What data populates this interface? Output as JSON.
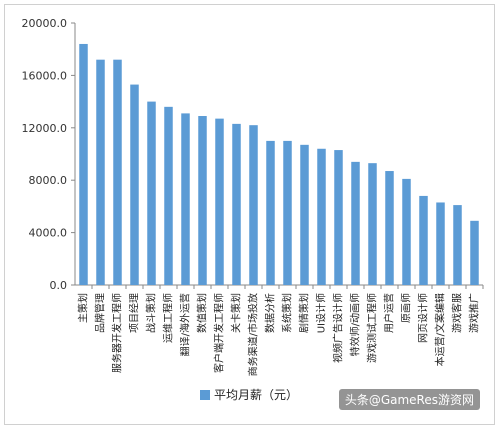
{
  "chart_data": {
    "type": "bar",
    "categories": [
      "主策划",
      "品牌管理",
      "服务器开发工程师",
      "项目经理",
      "战斗策划",
      "运维工程师",
      "翻译/海外运营",
      "数值策划",
      "客户端开发工程师",
      "关卡策划",
      "商务渠道/市场投放",
      "数据分析",
      "系统策划",
      "剧情策划",
      "UI设计师",
      "视频广告设计师",
      "特效师/动画师",
      "游戏测试工程师",
      "用户运营",
      "原画师",
      "网页设计师",
      "本运营/文案编辑",
      "游戏客服",
      "游戏推广"
    ],
    "series": [
      {
        "name": "平均月薪（元）",
        "values": [
          18400,
          17200,
          17200,
          15300,
          14000,
          13600,
          13100,
          12900,
          12700,
          12300,
          12200,
          11000,
          11000,
          10700,
          10400,
          10300,
          9400,
          9300,
          8700,
          8100,
          6800,
          6300,
          6100,
          4900
        ]
      }
    ],
    "ylim": [
      0,
      20000
    ],
    "yticks": [
      0,
      4000,
      8000,
      12000,
      16000,
      20000
    ],
    "ytick_labels": [
      "0.0",
      "4000.0",
      "8000.0",
      "12000.0",
      "16000.0",
      "20000.0"
    ],
    "legend_position": "bottom",
    "grid": false,
    "bar_color": "#5b9bd5"
  },
  "watermark": "头条@GameRes游资网"
}
